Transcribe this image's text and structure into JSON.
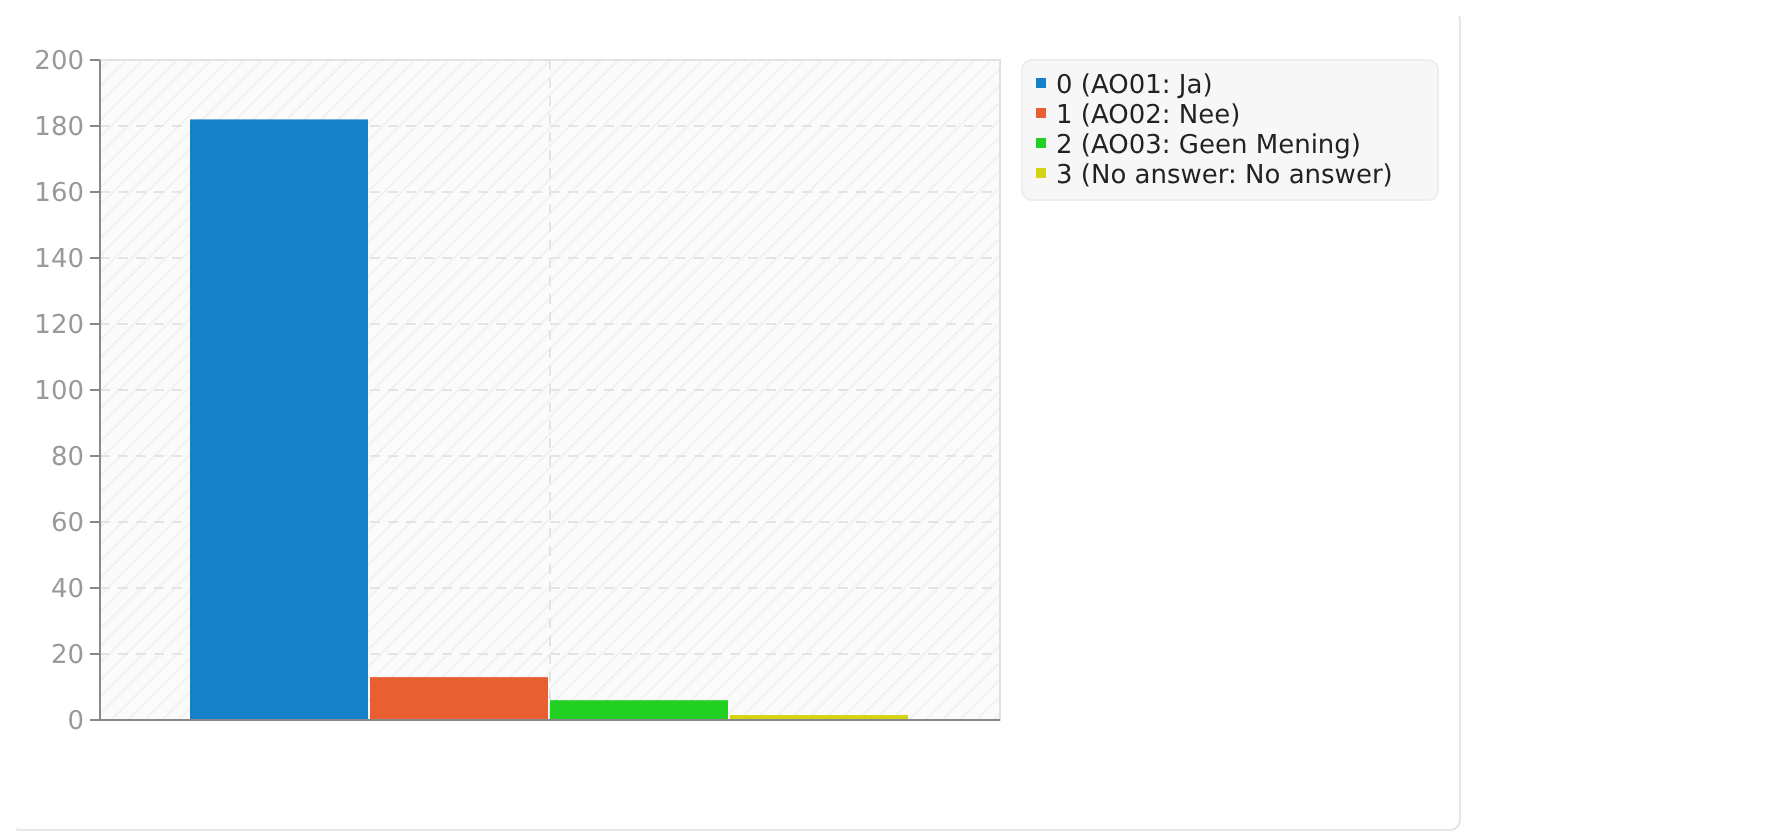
{
  "chart_data": {
    "type": "bar",
    "categories": [
      null
    ],
    "series": [
      {
        "name": "0 (AO01: Ja)",
        "color": "#1481c8",
        "values": [
          182
        ]
      },
      {
        "name": "1 (AO02: Nee)",
        "color": "#e86032",
        "values": [
          13
        ]
      },
      {
        "name": "2 (AO03: Geen Mening)",
        "color": "#22d022",
        "values": [
          6
        ]
      },
      {
        "name": "3 (No answer: No answer)",
        "color": "#d4d414",
        "values": [
          1.5
        ]
      }
    ],
    "ylim": [
      0,
      200
    ],
    "yticks": [
      0,
      20,
      40,
      60,
      80,
      100,
      120,
      140,
      160,
      180,
      200
    ],
    "grid": true,
    "legend": "top right"
  }
}
